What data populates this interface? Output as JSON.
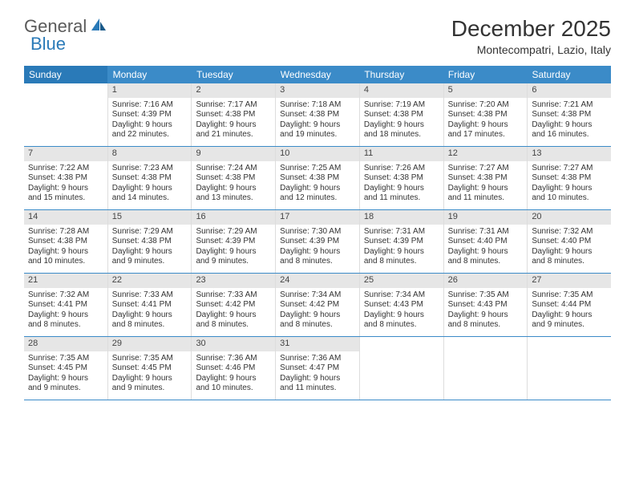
{
  "brand": {
    "part1": "General",
    "part2": "Blue"
  },
  "title": "December 2025",
  "location": "Montecompatri, Lazio, Italy",
  "colors": {
    "header_bg": "#3b8bc8",
    "header_bg_first": "#2a7ab8",
    "daynum_bg": "#e6e6e6",
    "row_border": "#3b8bc8",
    "text": "#333333",
    "logo_gray": "#5a5a5a",
    "logo_blue": "#2a7ab8"
  },
  "weekdays": [
    "Sunday",
    "Monday",
    "Tuesday",
    "Wednesday",
    "Thursday",
    "Friday",
    "Saturday"
  ],
  "weeks": [
    [
      null,
      {
        "n": "1",
        "sr": "7:16 AM",
        "ss": "4:39 PM",
        "dl": "9 hours and 22 minutes."
      },
      {
        "n": "2",
        "sr": "7:17 AM",
        "ss": "4:38 PM",
        "dl": "9 hours and 21 minutes."
      },
      {
        "n": "3",
        "sr": "7:18 AM",
        "ss": "4:38 PM",
        "dl": "9 hours and 19 minutes."
      },
      {
        "n": "4",
        "sr": "7:19 AM",
        "ss": "4:38 PM",
        "dl": "9 hours and 18 minutes."
      },
      {
        "n": "5",
        "sr": "7:20 AM",
        "ss": "4:38 PM",
        "dl": "9 hours and 17 minutes."
      },
      {
        "n": "6",
        "sr": "7:21 AM",
        "ss": "4:38 PM",
        "dl": "9 hours and 16 minutes."
      }
    ],
    [
      {
        "n": "7",
        "sr": "7:22 AM",
        "ss": "4:38 PM",
        "dl": "9 hours and 15 minutes."
      },
      {
        "n": "8",
        "sr": "7:23 AM",
        "ss": "4:38 PM",
        "dl": "9 hours and 14 minutes."
      },
      {
        "n": "9",
        "sr": "7:24 AM",
        "ss": "4:38 PM",
        "dl": "9 hours and 13 minutes."
      },
      {
        "n": "10",
        "sr": "7:25 AM",
        "ss": "4:38 PM",
        "dl": "9 hours and 12 minutes."
      },
      {
        "n": "11",
        "sr": "7:26 AM",
        "ss": "4:38 PM",
        "dl": "9 hours and 11 minutes."
      },
      {
        "n": "12",
        "sr": "7:27 AM",
        "ss": "4:38 PM",
        "dl": "9 hours and 11 minutes."
      },
      {
        "n": "13",
        "sr": "7:27 AM",
        "ss": "4:38 PM",
        "dl": "9 hours and 10 minutes."
      }
    ],
    [
      {
        "n": "14",
        "sr": "7:28 AM",
        "ss": "4:38 PM",
        "dl": "9 hours and 10 minutes."
      },
      {
        "n": "15",
        "sr": "7:29 AM",
        "ss": "4:38 PM",
        "dl": "9 hours and 9 minutes."
      },
      {
        "n": "16",
        "sr": "7:29 AM",
        "ss": "4:39 PM",
        "dl": "9 hours and 9 minutes."
      },
      {
        "n": "17",
        "sr": "7:30 AM",
        "ss": "4:39 PM",
        "dl": "9 hours and 8 minutes."
      },
      {
        "n": "18",
        "sr": "7:31 AM",
        "ss": "4:39 PM",
        "dl": "9 hours and 8 minutes."
      },
      {
        "n": "19",
        "sr": "7:31 AM",
        "ss": "4:40 PM",
        "dl": "9 hours and 8 minutes."
      },
      {
        "n": "20",
        "sr": "7:32 AM",
        "ss": "4:40 PM",
        "dl": "9 hours and 8 minutes."
      }
    ],
    [
      {
        "n": "21",
        "sr": "7:32 AM",
        "ss": "4:41 PM",
        "dl": "9 hours and 8 minutes."
      },
      {
        "n": "22",
        "sr": "7:33 AM",
        "ss": "4:41 PM",
        "dl": "9 hours and 8 minutes."
      },
      {
        "n": "23",
        "sr": "7:33 AM",
        "ss": "4:42 PM",
        "dl": "9 hours and 8 minutes."
      },
      {
        "n": "24",
        "sr": "7:34 AM",
        "ss": "4:42 PM",
        "dl": "9 hours and 8 minutes."
      },
      {
        "n": "25",
        "sr": "7:34 AM",
        "ss": "4:43 PM",
        "dl": "9 hours and 8 minutes."
      },
      {
        "n": "26",
        "sr": "7:35 AM",
        "ss": "4:43 PM",
        "dl": "9 hours and 8 minutes."
      },
      {
        "n": "27",
        "sr": "7:35 AM",
        "ss": "4:44 PM",
        "dl": "9 hours and 9 minutes."
      }
    ],
    [
      {
        "n": "28",
        "sr": "7:35 AM",
        "ss": "4:45 PM",
        "dl": "9 hours and 9 minutes."
      },
      {
        "n": "29",
        "sr": "7:35 AM",
        "ss": "4:45 PM",
        "dl": "9 hours and 9 minutes."
      },
      {
        "n": "30",
        "sr": "7:36 AM",
        "ss": "4:46 PM",
        "dl": "9 hours and 10 minutes."
      },
      {
        "n": "31",
        "sr": "7:36 AM",
        "ss": "4:47 PM",
        "dl": "9 hours and 11 minutes."
      },
      null,
      null,
      null
    ]
  ],
  "labels": {
    "sunrise": "Sunrise:",
    "sunset": "Sunset:",
    "daylight": "Daylight:"
  }
}
